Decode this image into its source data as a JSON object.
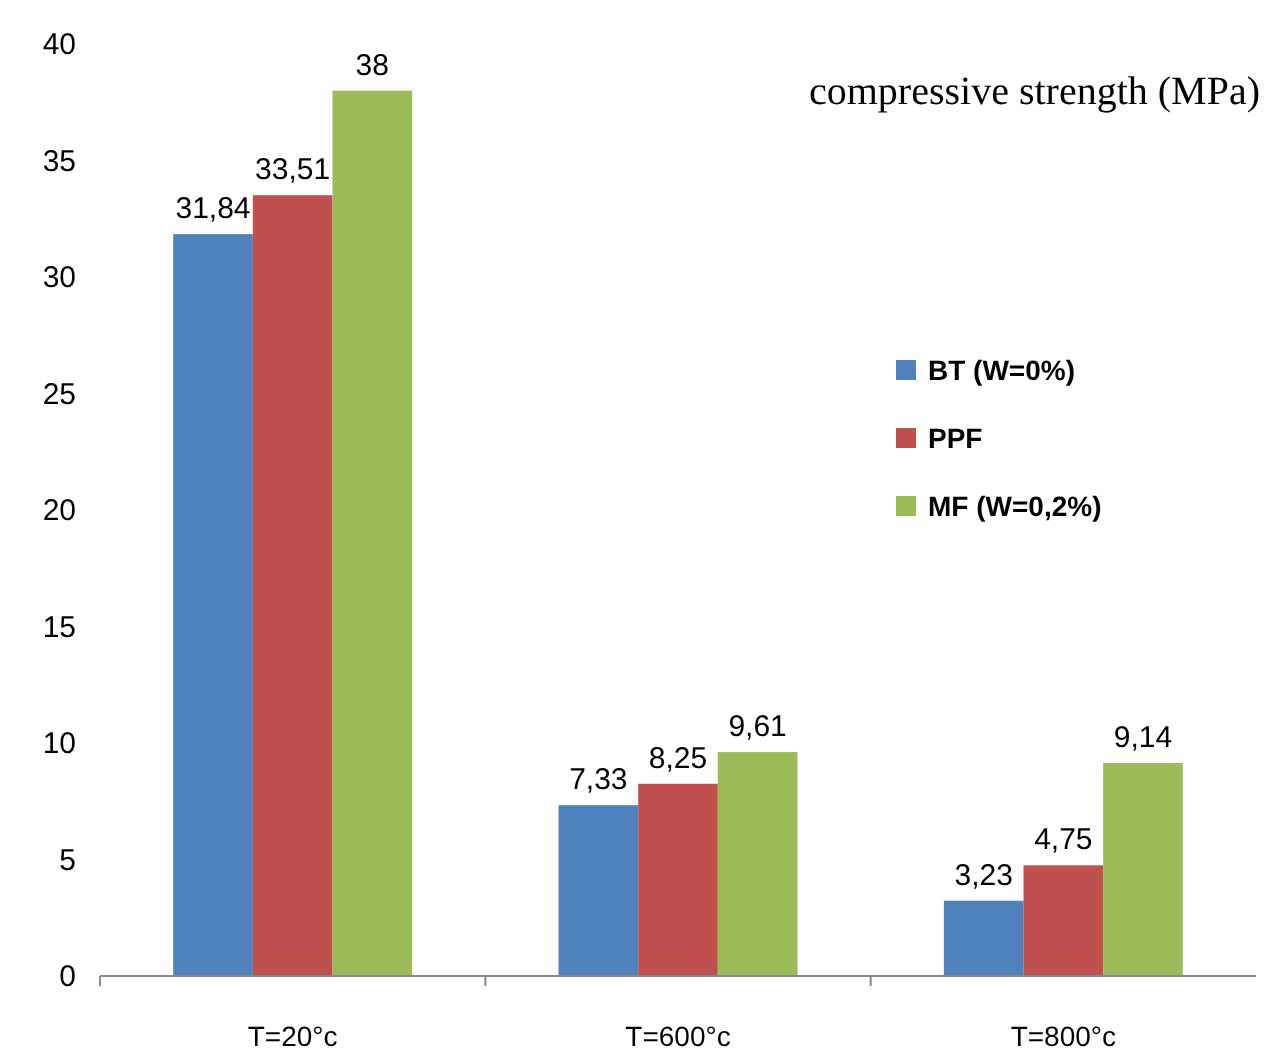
{
  "chart_data": {
    "type": "bar",
    "title": "compressive strength (MPa)",
    "categories": [
      "T=20°c",
      "T=600°c",
      "T=800°c"
    ],
    "series": [
      {
        "name": "BT (W=0%)",
        "color": "#4f81bd",
        "values": [
          31.84,
          7.33,
          3.23
        ],
        "value_labels": [
          "31,84",
          "7,33",
          "3,23"
        ]
      },
      {
        "name": "PPF",
        "color": "#c0504d",
        "values": [
          33.51,
          8.25,
          4.75
        ],
        "value_labels": [
          "33,51",
          "8,25",
          "4,75"
        ]
      },
      {
        "name": "MF (W=0,2%)",
        "color": "#9bbb59",
        "values": [
          38,
          9.61,
          9.14
        ],
        "value_labels": [
          "38",
          "9,61",
          "9,14"
        ]
      }
    ],
    "ylim": [
      0,
      40
    ],
    "yticks": [
      0,
      5,
      10,
      15,
      20,
      25,
      30,
      35,
      40
    ],
    "grid": false,
    "legend": "right"
  }
}
